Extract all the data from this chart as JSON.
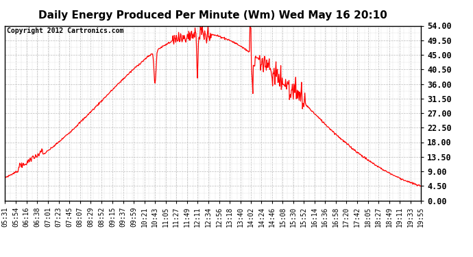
{
  "title": "Daily Energy Produced Per Minute (Wm) Wed May 16 20:10",
  "copyright": "Copyright 2012 Cartronics.com",
  "line_color": "#ff0000",
  "bg_color": "#ffffff",
  "grid_color": "#bbbbbb",
  "yticks": [
    0.0,
    4.5,
    9.0,
    13.5,
    18.0,
    22.5,
    27.0,
    31.5,
    36.0,
    40.5,
    45.0,
    49.5,
    54.0
  ],
  "ymax": 54.0,
  "ymin": 0.0,
  "xtick_labels": [
    "05:31",
    "05:54",
    "06:16",
    "06:38",
    "07:01",
    "07:23",
    "07:45",
    "08:07",
    "08:29",
    "08:52",
    "09:15",
    "09:37",
    "09:59",
    "10:21",
    "10:43",
    "11:05",
    "11:27",
    "11:49",
    "12:11",
    "12:34",
    "12:56",
    "13:18",
    "13:40",
    "14:02",
    "14:24",
    "14:46",
    "15:08",
    "15:30",
    "15:52",
    "16:14",
    "16:36",
    "16:58",
    "17:20",
    "17:42",
    "18:05",
    "18:27",
    "18:49",
    "19:11",
    "19:33",
    "19:55"
  ],
  "title_fontsize": 11,
  "copyright_fontsize": 7,
  "tick_fontsize": 7,
  "ytick_fontsize": 8.5,
  "start_time": "05:31",
  "end_time": "19:55",
  "peak_time": "12:20",
  "peak_value": 51.5
}
